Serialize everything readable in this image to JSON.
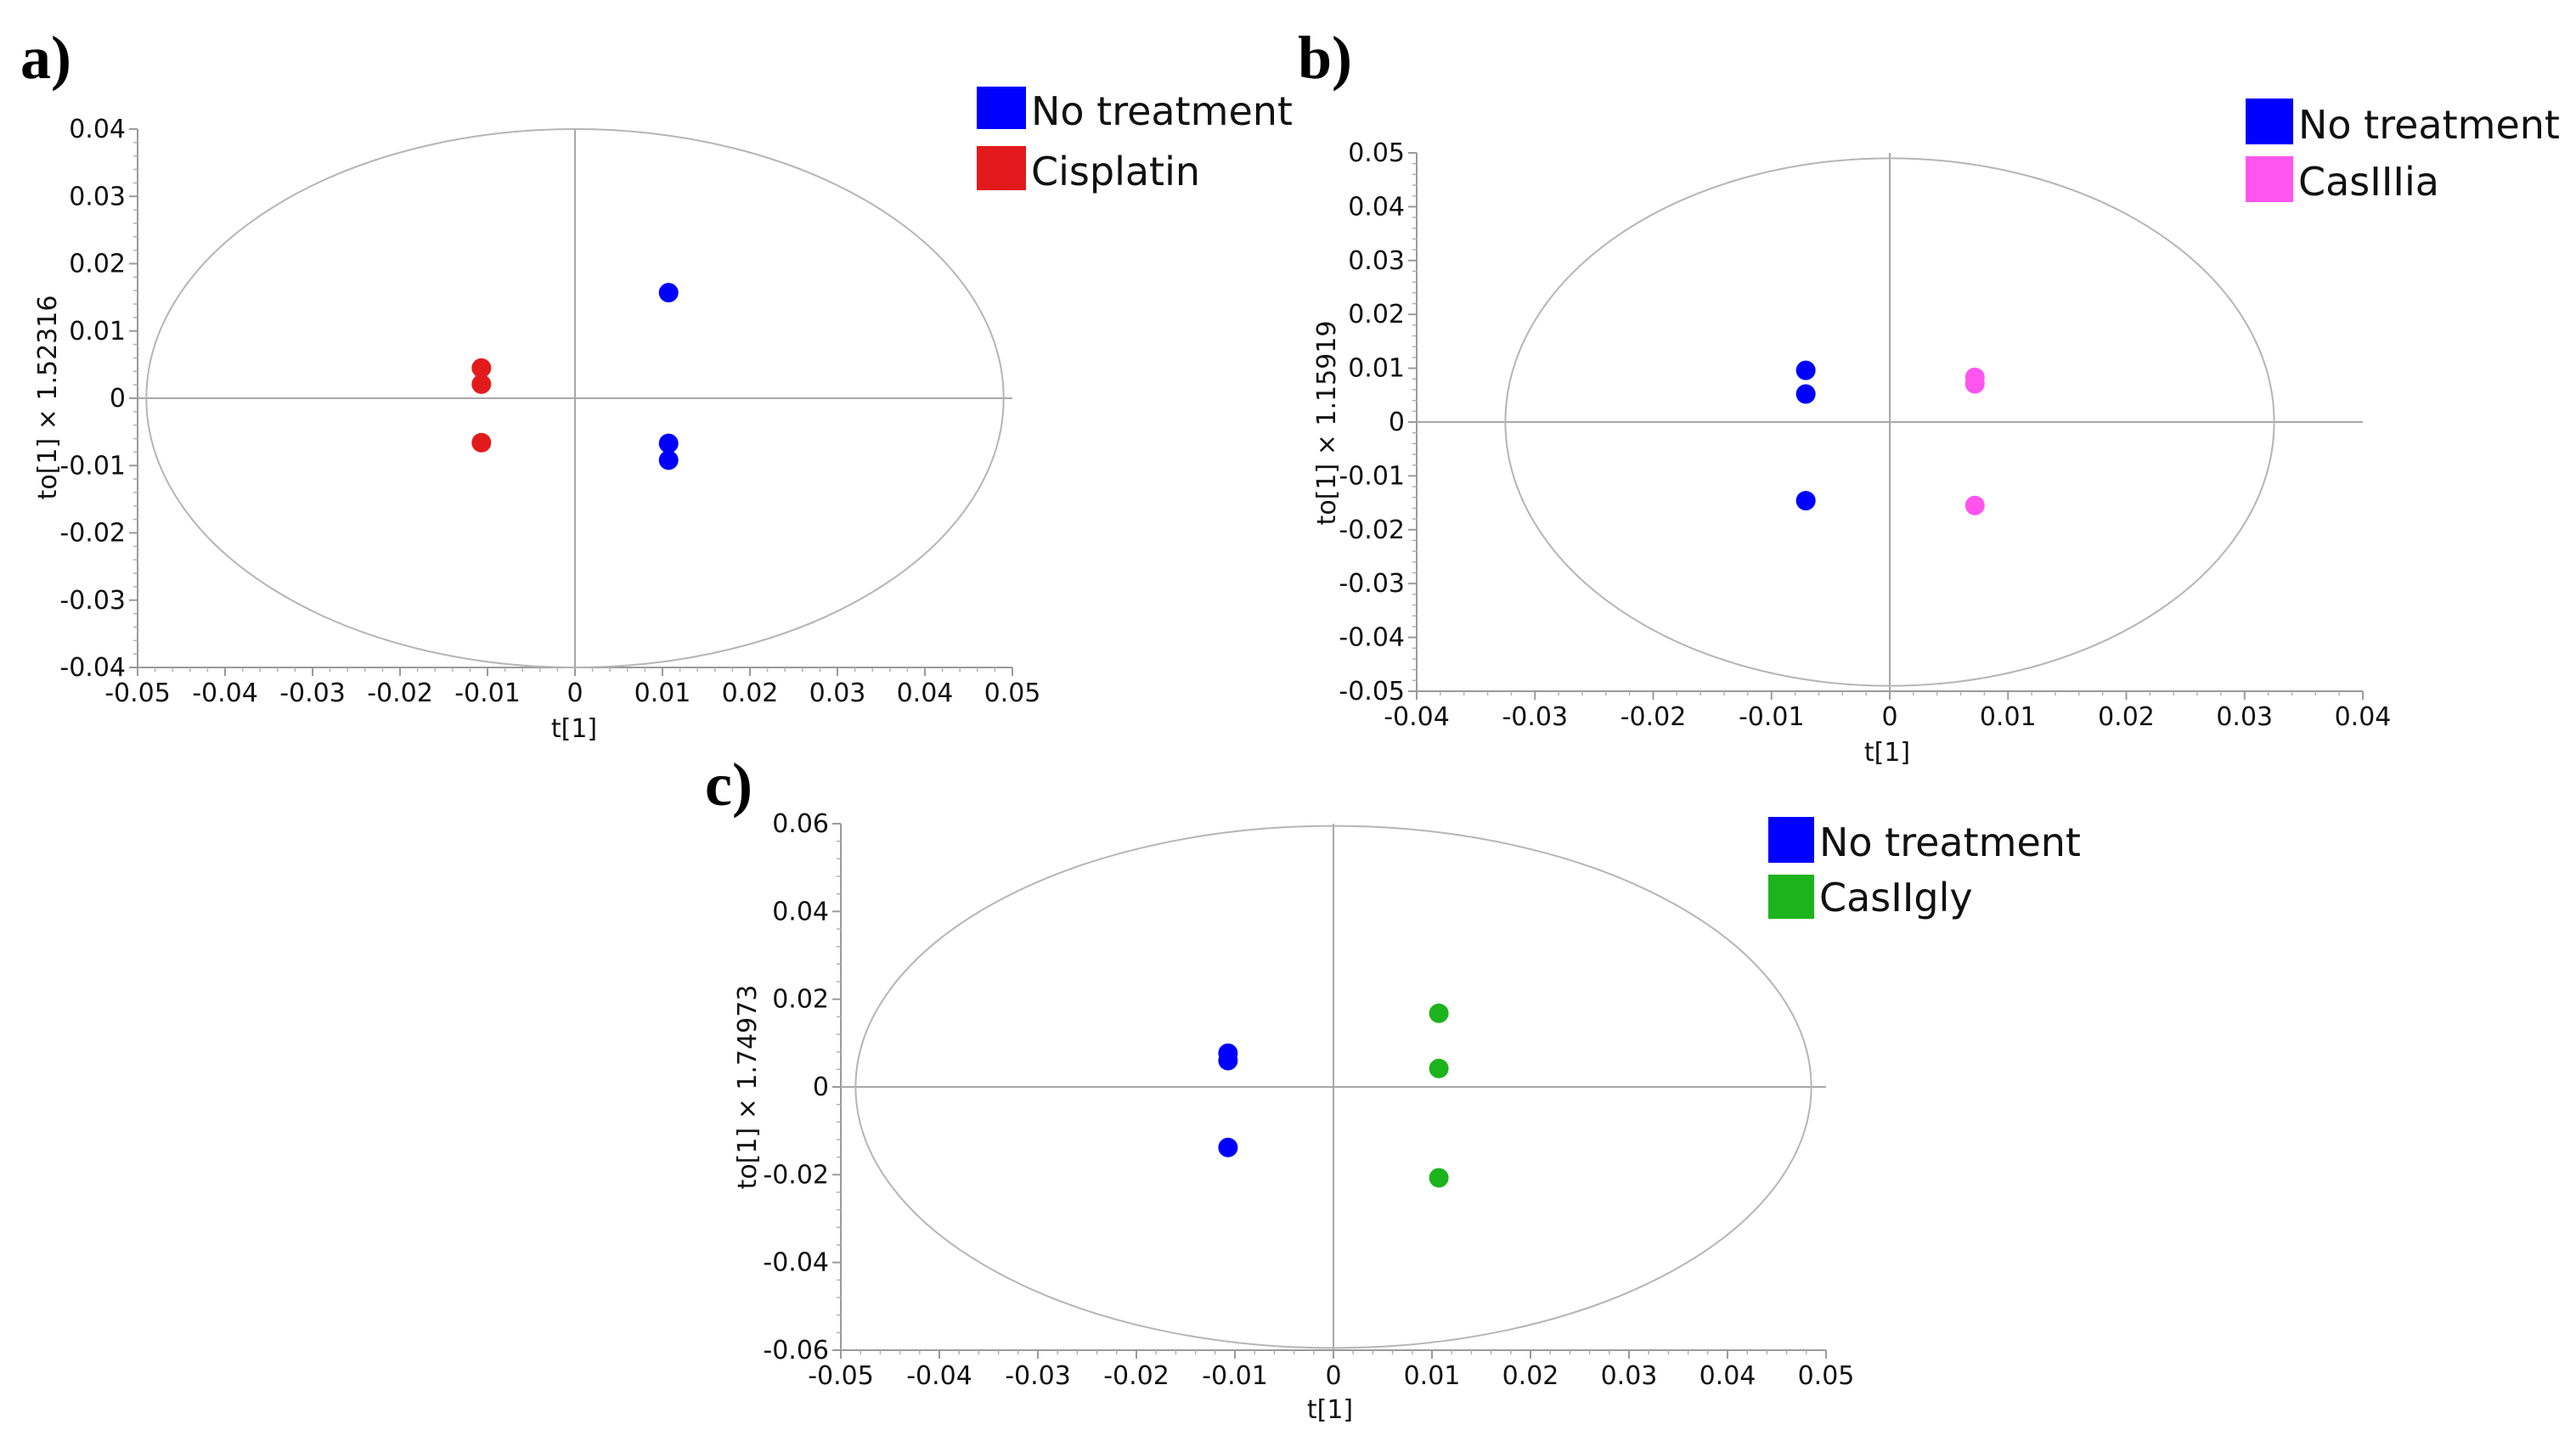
{
  "chart_data": [
    {
      "panel_label": "a)",
      "type": "scatter",
      "xlabel": "t[1]",
      "ylabel": "to[1] × 1.52316",
      "xlim": [
        -0.05,
        0.05
      ],
      "ylim": [
        -0.04,
        0.04
      ],
      "x_tick_labels": [
        "-0.05",
        "-0.04",
        "-0.03",
        "-0.02",
        "-0.01",
        "0",
        "0.01",
        "0.02",
        "0.03",
        "0.04",
        "0.05"
      ],
      "y_tick_labels": [
        "0.04",
        "0.03",
        "0.02",
        "0.01",
        "0",
        "-0.01",
        "-0.02",
        "-0.03",
        "-0.04"
      ],
      "ellipse": {
        "rx": 0.049,
        "ry": 0.04
      },
      "legend": [
        {
          "label": "No treatment",
          "color": "#0000ff"
        },
        {
          "label": "Cisplatin",
          "color": "#e31a1c"
        }
      ],
      "series": [
        {
          "name": "No treatment",
          "color": "#0000ff",
          "points": [
            [
              0.0107,
              0.0157
            ],
            [
              0.0107,
              -0.0067
            ],
            [
              0.0107,
              -0.0092
            ]
          ]
        },
        {
          "name": "Cisplatin",
          "color": "#e31a1c",
          "points": [
            [
              -0.0107,
              0.0045
            ],
            [
              -0.0107,
              0.0021
            ],
            [
              -0.0107,
              -0.0066
            ]
          ]
        }
      ]
    },
    {
      "panel_label": "b)",
      "type": "scatter",
      "xlabel": "t[1]",
      "ylabel": "to[1] × 1.15919",
      "xlim": [
        -0.04,
        0.04
      ],
      "ylim": [
        -0.05,
        0.05
      ],
      "x_tick_labels": [
        "-0.04",
        "-0.03",
        "-0.02",
        "-0.01",
        "0",
        "0.01",
        "0.02",
        "0.03",
        "0.04"
      ],
      "y_tick_labels": [
        "0.05",
        "0.04",
        "0.03",
        "0.02",
        "0.01",
        "0",
        "-0.01",
        "-0.02",
        "-0.03",
        "-0.04",
        "-0.05"
      ],
      "ellipse": {
        "rx": 0.0325,
        "ry": 0.049
      },
      "legend": [
        {
          "label": "No treatment",
          "color": "#0000ff"
        },
        {
          "label": "CasIIIia",
          "color": "#ff55ee"
        }
      ],
      "series": [
        {
          "name": "No treatment",
          "color": "#0000ff",
          "points": [
            [
              -0.0071,
              0.0096
            ],
            [
              -0.0071,
              0.0052
            ],
            [
              -0.0071,
              -0.0146
            ]
          ]
        },
        {
          "name": "CasIIIia",
          "color": "#ff55ee",
          "points": [
            [
              0.0072,
              0.0083
            ],
            [
              0.0072,
              0.0071
            ],
            [
              0.0072,
              -0.0155
            ]
          ]
        }
      ]
    },
    {
      "panel_label": "c)",
      "type": "scatter",
      "xlabel": "t[1]",
      "ylabel": "to[1] × 1.74973",
      "xlim": [
        -0.05,
        0.05
      ],
      "ylim": [
        -0.06,
        0.06
      ],
      "x_tick_labels": [
        "-0.05",
        "-0.04",
        "-0.03",
        "-0.02",
        "-0.01",
        "0",
        "0.01",
        "0.02",
        "0.03",
        "0.04",
        "0.05"
      ],
      "y_tick_labels": [
        "0.06",
        "0.04",
        "0.02",
        "0",
        "-0.02",
        "-0.04",
        "-0.06"
      ],
      "ellipse": {
        "rx": 0.0485,
        "ry": 0.0595
      },
      "legend": [
        {
          "label": "No treatment",
          "color": "#0000ff"
        },
        {
          "label": "CasIIgly",
          "color": "#1db31d"
        }
      ],
      "series": [
        {
          "name": "No treatment",
          "color": "#0000ff",
          "points": [
            [
              -0.0107,
              0.0077
            ],
            [
              -0.0107,
              0.006
            ],
            [
              -0.0107,
              -0.0138
            ]
          ]
        },
        {
          "name": "CasIIgly",
          "color": "#1db31d",
          "points": [
            [
              0.0107,
              0.0168
            ],
            [
              0.0107,
              0.0042
            ],
            [
              0.0107,
              -0.0207
            ]
          ]
        }
      ]
    }
  ]
}
